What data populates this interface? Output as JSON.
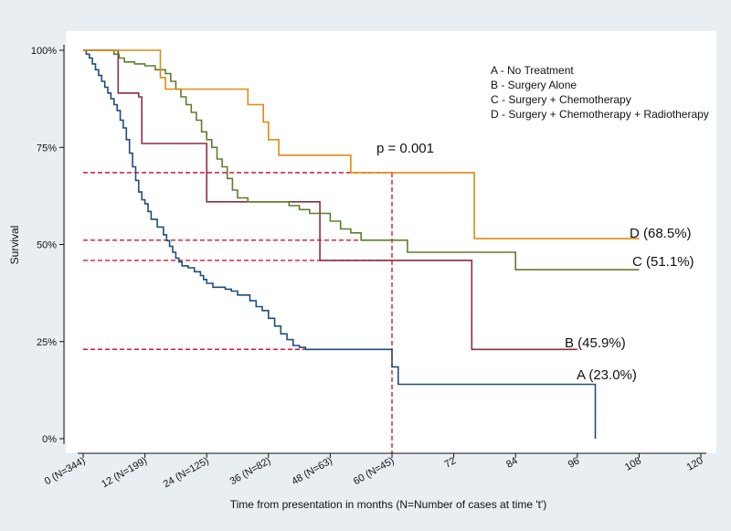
{
  "chart_data": {
    "type": "line",
    "subtype": "kaplan-meier step plot",
    "title": "",
    "xlabel": "Time from presentation in months (N=Number of cases at time 't')",
    "ylabel": "Survival",
    "xlim": [
      0,
      120
    ],
    "ylim": [
      0,
      1
    ],
    "x_ticks": [
      0,
      12,
      24,
      36,
      48,
      60,
      72,
      84,
      96,
      108,
      120
    ],
    "x_tick_labels": [
      "0 (N=344)",
      "12 (N=199)",
      "24 (N=125)",
      "36 (N=82)",
      "48 (N=63)",
      "60 (N=45)",
      "72",
      "84",
      "96",
      "108",
      "120"
    ],
    "y_ticks": [
      0,
      0.25,
      0.5,
      0.75,
      1.0
    ],
    "y_tick_labels": [
      "0%",
      "25%",
      "50%",
      "75%",
      "100%"
    ],
    "grid": false,
    "legend": {
      "position": "top-right",
      "entries": [
        "A - No Treatment",
        "B - Surgery Alone",
        "C - Surgery + Chemotherapy",
        "D - Surgery + Chemotherapy + Radiotherapy"
      ]
    },
    "annotation": "p = 0.001",
    "reference_lines": {
      "x": 60,
      "y": [
        0.685,
        0.511,
        0.459,
        0.23
      ],
      "color": "#d8143a"
    },
    "series": [
      {
        "name": "A",
        "label": "A (23.0%)",
        "color": "#1f4e79",
        "x": [
          0,
          0.6,
          1.2,
          1.8,
          2.4,
          3,
          3.6,
          4.2,
          4.8,
          5.4,
          6,
          6.6,
          7.2,
          7.8,
          8.4,
          9,
          9.6,
          10.2,
          10.8,
          11.4,
          12,
          12.6,
          13.2,
          14.4,
          15.6,
          16.2,
          16.8,
          17.4,
          18,
          18.6,
          19.2,
          20.4,
          21.6,
          22.8,
          23.4,
          24,
          25.2,
          26.4,
          27.6,
          28.8,
          30,
          31.2,
          32.4,
          33.6,
          34.8,
          36,
          37.2,
          38.4,
          39.6,
          40.8,
          42,
          43.2,
          60,
          61.2,
          63.6,
          99.5
        ],
        "y": [
          1.0,
          0.99,
          0.98,
          0.965,
          0.95,
          0.935,
          0.92,
          0.905,
          0.89,
          0.875,
          0.86,
          0.845,
          0.82,
          0.8,
          0.77,
          0.735,
          0.7,
          0.665,
          0.635,
          0.615,
          0.605,
          0.585,
          0.565,
          0.545,
          0.525,
          0.51,
          0.495,
          0.48,
          0.465,
          0.455,
          0.445,
          0.44,
          0.43,
          0.42,
          0.41,
          0.4,
          0.39,
          0.39,
          0.385,
          0.38,
          0.37,
          0.37,
          0.355,
          0.34,
          0.33,
          0.31,
          0.29,
          0.27,
          0.255,
          0.24,
          0.235,
          0.23,
          0.185,
          0.14,
          0.14,
          0.0
        ],
        "end_x": 99.5
      },
      {
        "name": "B",
        "label": "B (45.9%)",
        "color": "#8b2f3f",
        "x": [
          0,
          6.8,
          10.8,
          11.4,
          24,
          36,
          42,
          46,
          60,
          75.5
        ],
        "y": [
          1.0,
          0.89,
          0.88,
          0.76,
          0.61,
          0.61,
          0.61,
          0.459,
          0.459,
          0.23
        ],
        "end_x": 96
      },
      {
        "name": "C",
        "label": "C (51.1%)",
        "color": "#5b7f2b",
        "x": [
          0,
          6,
          7,
          8,
          10,
          12,
          14,
          16,
          17,
          18,
          19,
          20,
          21,
          22,
          23,
          24,
          25,
          26,
          27,
          28,
          29,
          30,
          31,
          32,
          34,
          36,
          40,
          42,
          44,
          48,
          50,
          52,
          54,
          60,
          63,
          84
        ],
        "y": [
          1.0,
          0.99,
          0.98,
          0.97,
          0.965,
          0.96,
          0.95,
          0.94,
          0.92,
          0.9,
          0.88,
          0.86,
          0.84,
          0.82,
          0.79,
          0.77,
          0.75,
          0.72,
          0.7,
          0.67,
          0.64,
          0.62,
          0.62,
          0.61,
          0.61,
          0.61,
          0.6,
          0.59,
          0.58,
          0.56,
          0.54,
          0.53,
          0.511,
          0.511,
          0.48,
          0.435
        ],
        "end_x": 108
      },
      {
        "name": "D",
        "label": "D (68.5%)",
        "color": "#e38a10",
        "x": [
          0,
          15,
          16,
          25,
          32,
          35,
          36,
          38,
          40,
          52,
          60,
          76
        ],
        "y": [
          1.0,
          0.93,
          0.9,
          0.9,
          0.86,
          0.815,
          0.77,
          0.73,
          0.73,
          0.685,
          0.685,
          0.515
        ],
        "end_x": 108
      }
    ]
  }
}
